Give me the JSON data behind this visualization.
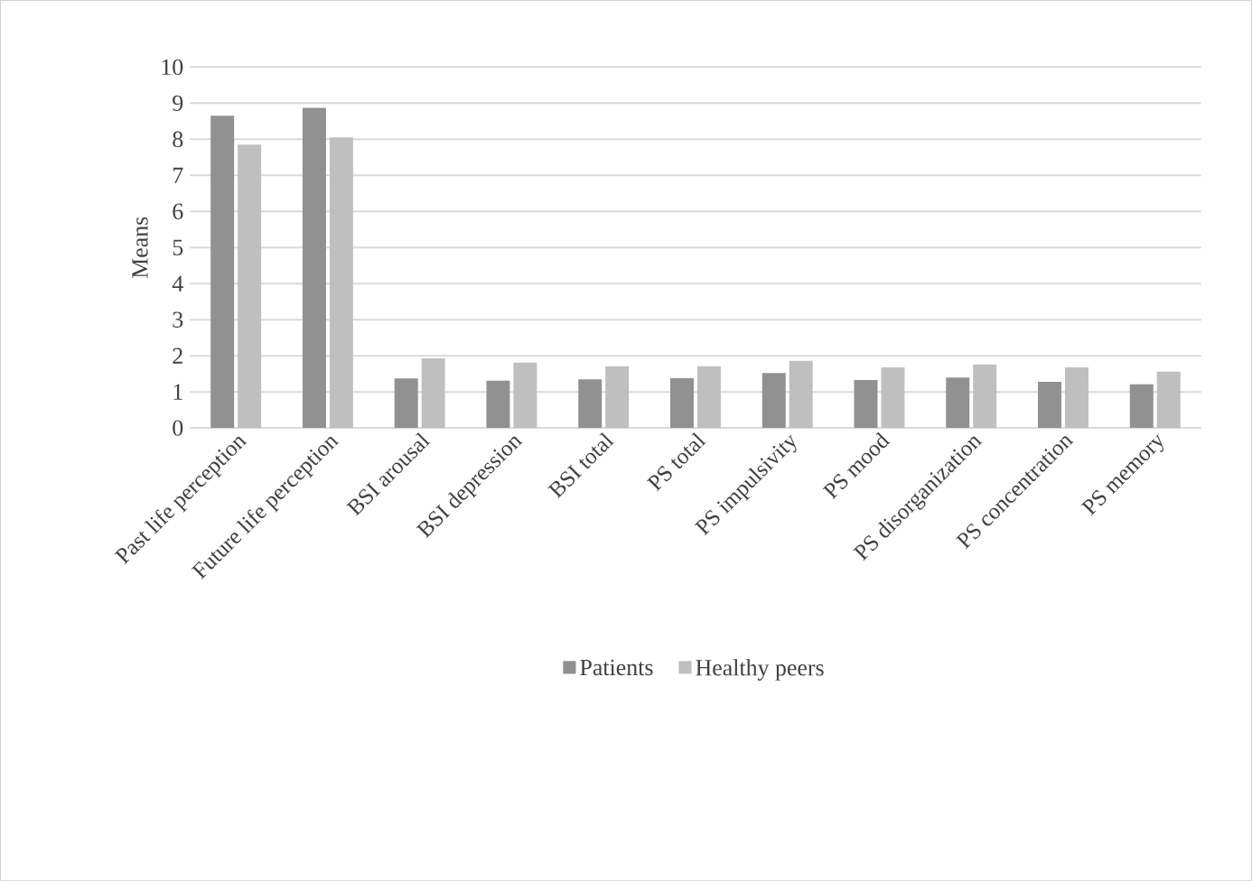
{
  "chart_data": {
    "type": "bar",
    "ylabel": "Means",
    "categories": [
      "Past life perception",
      "Future life perception",
      "BSI arousal",
      "BSI depression",
      "BSI total",
      "PS total",
      "PS impulsivity",
      "PS mood",
      "PS disorganization",
      "PS concentration",
      "PS memory"
    ],
    "series": [
      {
        "name": "Patients",
        "color": "#919191",
        "values": [
          8.65,
          8.87,
          1.37,
          1.31,
          1.35,
          1.38,
          1.52,
          1.33,
          1.4,
          1.28,
          1.21
        ]
      },
      {
        "name": "Healthy peers",
        "color": "#bfbfbf",
        "values": [
          7.85,
          8.05,
          1.93,
          1.81,
          1.71,
          1.71,
          1.86,
          1.68,
          1.76,
          1.68,
          1.56
        ]
      }
    ],
    "ylim": [
      0,
      10
    ],
    "yticks": [
      0,
      1,
      2,
      3,
      4,
      5,
      6,
      7,
      8,
      9,
      10
    ],
    "grid": "y",
    "legend": "bottom"
  }
}
